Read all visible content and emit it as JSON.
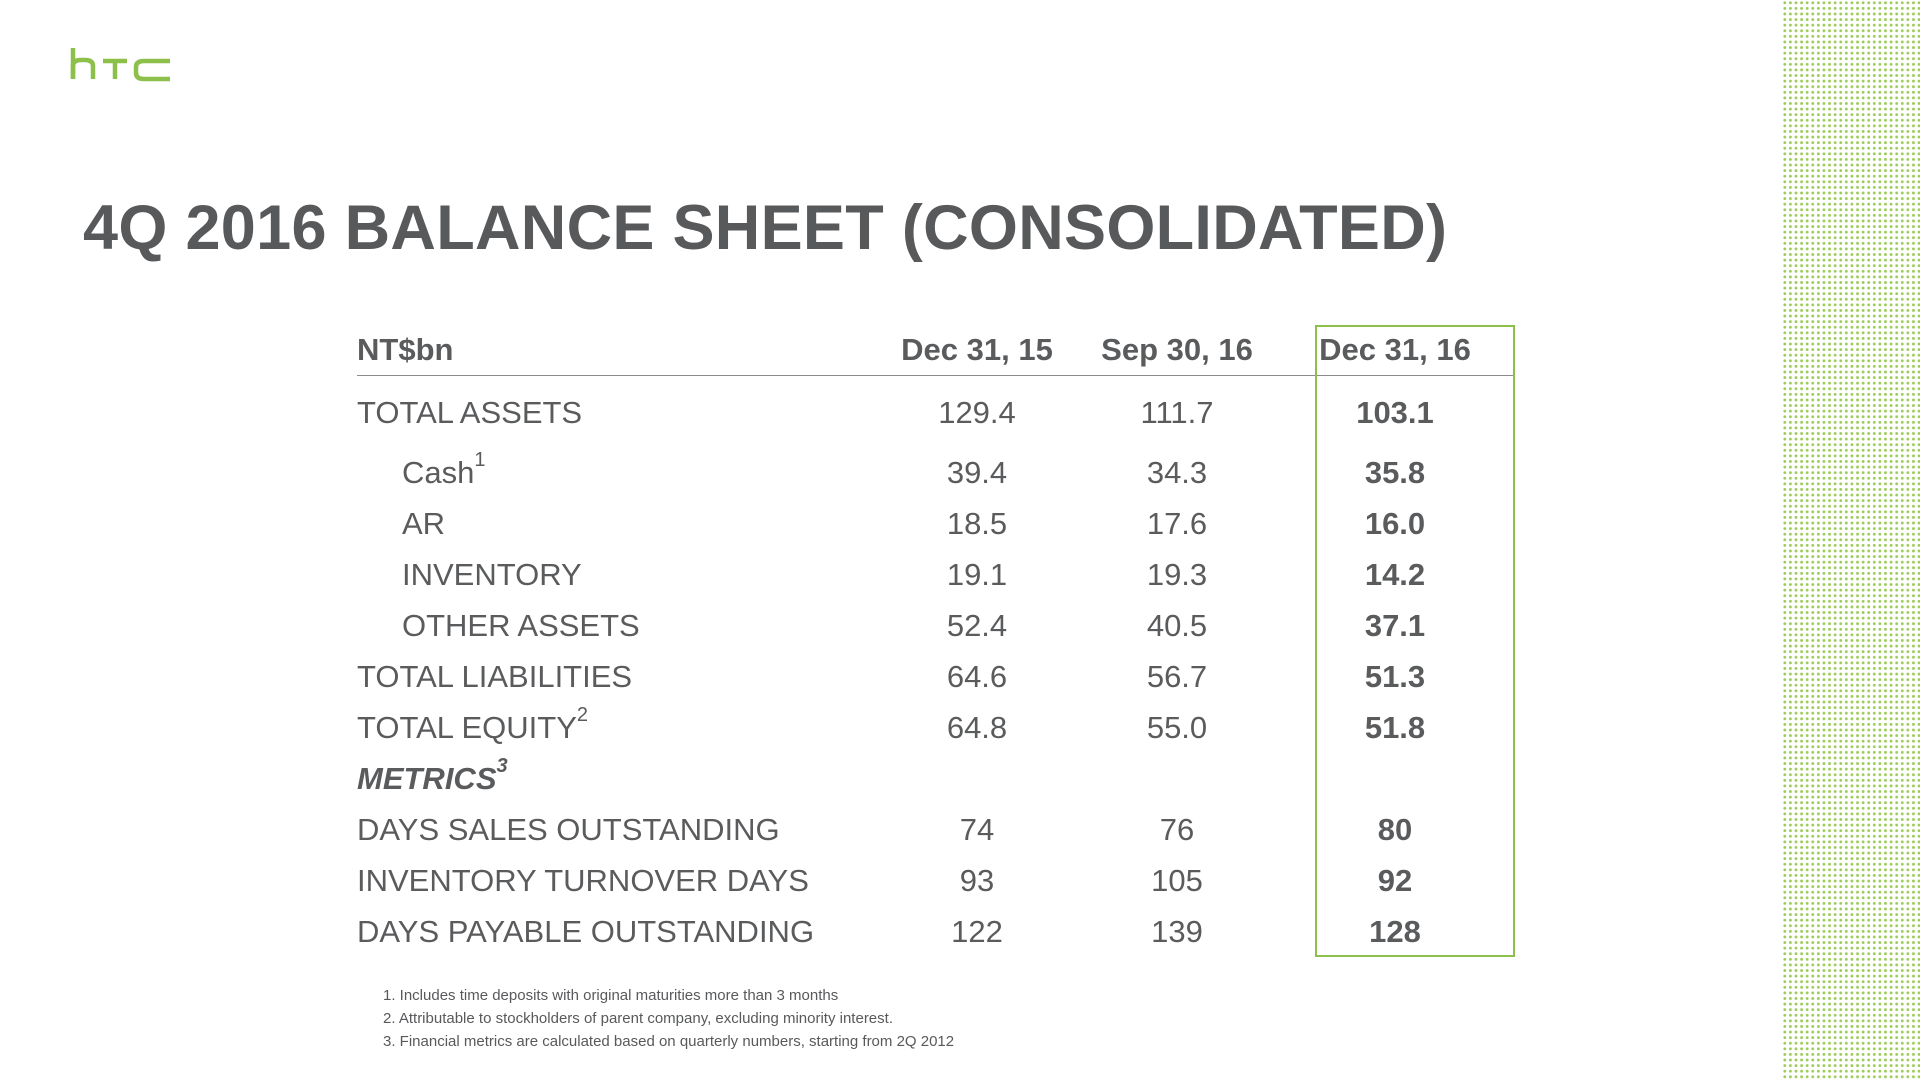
{
  "brand": {
    "logo_text": "htc",
    "accent_color": "#8cc04b"
  },
  "title": "4Q 2016 BALANCE SHEET (CONSOLIDATED)",
  "table": {
    "header": {
      "unit": "NT$bn",
      "col1": "Dec 31, 15",
      "col2": "Sep 30, 16",
      "col3": "Dec 31, 16"
    },
    "rows": [
      {
        "label": "TOTAL ASSETS",
        "sup": "",
        "v1": "129.4",
        "v2": "111.7",
        "v3": "103.1"
      },
      {
        "label": "Cash",
        "sup": "1",
        "v1": "39.4",
        "v2": "34.3",
        "v3": "35.8"
      },
      {
        "label": "AR",
        "sup": "",
        "v1": "18.5",
        "v2": "17.6",
        "v3": "16.0"
      },
      {
        "label": "INVENTORY",
        "sup": "",
        "v1": "19.1",
        "v2": "19.3",
        "v3": "14.2"
      },
      {
        "label": "OTHER ASSETS",
        "sup": "",
        "v1": "52.4",
        "v2": "40.5",
        "v3": "37.1"
      },
      {
        "label": "TOTAL LIABILITIES",
        "sup": "",
        "v1": "64.6",
        "v2": "56.7",
        "v3": "51.3"
      },
      {
        "label": "TOTAL EQUITY",
        "sup": "2",
        "v1": "64.8",
        "v2": "55.0",
        "v3": "51.8"
      },
      {
        "label": "METRICS",
        "sup": "3"
      },
      {
        "label": "DAYS SALES OUTSTANDING",
        "sup": "",
        "v1": "74",
        "v2": "76",
        "v3": "80"
      },
      {
        "label": "INVENTORY TURNOVER DAYS",
        "sup": "",
        "v1": "93",
        "v2": "105",
        "v3": "92"
      },
      {
        "label": "DAYS PAYABLE OUTSTANDING",
        "sup": "",
        "v1": "122",
        "v2": "139",
        "v3": "128"
      }
    ]
  },
  "footnotes": [
    "1. Includes time deposits with original maturities more than 3 months",
    "2. Attributable to stockholders of parent company, excluding minority interest.",
    "3. Financial metrics are calculated based on quarterly numbers, starting from 2Q 2012"
  ]
}
